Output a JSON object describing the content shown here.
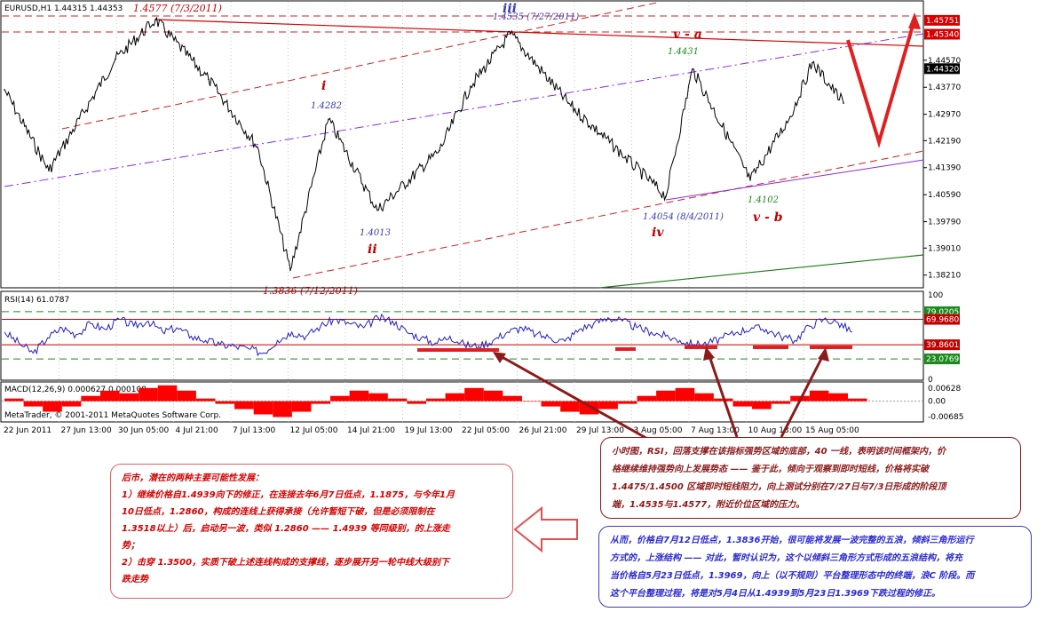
{
  "chart_data": [
    {
      "type": "line",
      "panel": "price",
      "header": "EURUSD,H1  1.44315 1.44353",
      "symbol": "EURUSD,H1",
      "ylim": [
        1.3786,
        1.463
      ],
      "y_ticks": [
        "1.44570",
        "1.43770",
        "1.42970",
        "1.42190",
        "1.41390",
        "1.40590",
        "1.39790",
        "1.39010",
        "1.38210"
      ],
      "price_tags": [
        {
          "label": "1.45751",
          "value": 1.45751,
          "color": "#d40000"
        },
        {
          "label": "1.45340",
          "value": 1.4534,
          "color": "#d40000"
        },
        {
          "label": "1.44320",
          "value": 1.4432,
          "color": "#000000"
        }
      ],
      "x_labels": [
        "22 Jun 2011",
        "27 Jun 13:00",
        "30 Jun 05:00",
        "4 Jul 21:00",
        "7 Jul 13:00",
        "12 Jul 05:00",
        "14 Jul 21:00",
        "19 Jul 13:00",
        "22 Jul 05:00",
        "26 Jul 21:00",
        "29 Jul 13:00",
        "3 Aug 05:00",
        "7 Aug 13:00",
        "10 Aug 13:00",
        "15 Aug 05:00"
      ],
      "swing_points": [
        {
          "date": "22 Jun",
          "value": 1.437
        },
        {
          "date": "24 Jun",
          "value": 1.413
        },
        {
          "date": "29 Jun",
          "value": 1.446
        },
        {
          "date": "3 Jul",
          "value": 1.4577
        },
        {
          "date": "5 Jul",
          "value": 1.44
        },
        {
          "date": "8 Jul",
          "value": 1.42
        },
        {
          "date": "12 Jul",
          "value": 1.3836
        },
        {
          "date": "13 Jul",
          "value": 1.4282
        },
        {
          "date": "15 Jul",
          "value": 1.4013
        },
        {
          "date": "19 Jul",
          "value": 1.419
        },
        {
          "date": "22 Jul",
          "value": 1.438
        },
        {
          "date": "27 Jul",
          "value": 1.4535
        },
        {
          "date": "29 Jul",
          "value": 1.433
        },
        {
          "date": "2 Aug",
          "value": 1.418
        },
        {
          "date": "4 Aug",
          "value": 1.4054
        },
        {
          "date": "8 Aug",
          "value": 1.4431
        },
        {
          "date": "10 Aug",
          "value": 1.4102
        },
        {
          "date": "13 Aug",
          "value": 1.429
        },
        {
          "date": "15 Aug",
          "value": 1.445
        },
        {
          "date": "17 Aug",
          "value": 1.433
        }
      ],
      "annotations": [
        {
          "text": "1.4577 (7/3/2011)",
          "style": "red"
        },
        {
          "text": "1.4535 (7/27/2011)",
          "style": "blue"
        },
        {
          "text": "1.4431",
          "style": "green"
        },
        {
          "text": "1.4282",
          "style": "blue"
        },
        {
          "text": "1.4013",
          "style": "blue"
        },
        {
          "text": "1.3836 (7/12/2011)",
          "style": "red"
        },
        {
          "text": "1.4054 (8/4/2011)",
          "style": "blue"
        },
        {
          "text": "1.4102",
          "style": "green"
        },
        {
          "text": "i",
          "style": "wave-red"
        },
        {
          "text": "ii",
          "style": "wave-red"
        },
        {
          "text": "iii",
          "style": "wave-blue"
        },
        {
          "text": "iv",
          "style": "wave-red"
        },
        {
          "text": "v - a",
          "style": "wave-red"
        },
        {
          "text": "v - b",
          "style": "wave-red"
        }
      ]
    },
    {
      "type": "line",
      "panel": "rsi",
      "header": "RSI(14) 61.0787",
      "ylim": [
        0,
        100
      ],
      "y_ticks": [
        "100",
        "0"
      ],
      "levels": [
        {
          "label": "79.0205",
          "value": 79.02,
          "color": "#1a8a1a"
        },
        {
          "label": "69.9680",
          "value": 69.97,
          "color": "#c00000"
        },
        {
          "label": "39.8601",
          "value": 39.86,
          "color": "#c00000"
        },
        {
          "label": "23.0769",
          "value": 23.08,
          "color": "#1a8a1a"
        }
      ],
      "values": [
        55,
        42,
        30,
        48,
        60,
        52,
        65,
        58,
        70,
        62,
        68,
        55,
        60,
        50,
        45,
        40,
        38,
        35,
        30,
        45,
        55,
        50,
        62,
        70,
        65,
        60,
        72,
        68,
        55,
        48,
        42,
        50,
        40,
        38,
        45,
        55,
        60,
        52,
        48,
        44,
        58,
        65,
        72,
        68,
        60,
        55,
        50,
        45,
        40,
        42,
        48,
        55,
        60,
        58,
        50,
        45,
        62,
        70,
        66,
        55
      ]
    },
    {
      "type": "bar",
      "panel": "macd",
      "header": "MACD(12,26,9) 0.000627 0.000108",
      "y_ticks": [
        "0.00628",
        "0.00",
        "-0.00685"
      ],
      "ylim": [
        -0.00685,
        0.00628
      ],
      "values": [
        0.001,
        -0.002,
        -0.004,
        -0.002,
        0.002,
        0.004,
        0.003,
        0.005,
        0.006,
        0.004,
        0.001,
        -0.001,
        -0.003,
        -0.005,
        -0.006,
        -0.004,
        -0.001,
        0.002,
        0.004,
        0.003,
        0.001,
        -0.001,
        0.001,
        0.003,
        0.005,
        0.004,
        0.002,
        0.0,
        -0.002,
        -0.004,
        -0.005,
        -0.003,
        -0.001,
        0.002,
        0.004,
        0.005,
        0.003,
        0.001,
        -0.002,
        -0.003,
        -0.001,
        0.002,
        0.004,
        0.003,
        0.001
      ]
    }
  ],
  "footer": "MetaTrader, © 2001-2011 MetaQuotes Software Corp.",
  "notes": {
    "left": [
      "后市，潜在的两种主要可能性发展：",
      "1）继续价格自1.4939向下的修正，在连接去年6月7日低点，1.1875，与今年1月",
      "10日低点，1.2860，构成的连线上获得承接（允许暂短下破，但是必须限制在",
      "1.3518以上）后，启动另一波，类似 1.2860 —— 1.4939 等同级别，的上涨走",
      "势；",
      "2）击穿 1.3500，实质下破上述连线构成的支撑线，逐步展开另一轮中线大级别下",
      "跌走势"
    ],
    "middle": [
      "小时图，RSI，回落支撑在该指标强势区域的底部，40 一线，表明该时间框架内，价",
      "格继续维持强势向上发展势态 —— 鉴于此，倾向于观察到即时短线，价格将实破",
      "1.4475/1.4500 区域即时短线阻力，向上测试分别在7/27日与7/3日形成的阶段顶",
      "端，1.4535与1.4577，附近价位区域的压力。"
    ],
    "right": [
      "从而，价格自7月12日低点，1.3836开始，很可能将发展一波完整的五浪，倾斜三角形运行",
      "方式的，上涨结构 —— 对此，暂时认识为，这个以倾斜三角形方式形成的五浪结构，将充",
      "当价格自5月23日低点，1.3969，向上（以不规则）平台整理形态中的终端，浪C 阶段。而",
      "这个平台整理过程，将是对5月4日从1.4939到5月23日1.3969下跌过程的修正。"
    ]
  },
  "colors": {
    "red_line": "#d40000",
    "dashed_red": "#cc2020",
    "purple": "#8a2be2",
    "green": "#1a7a1a",
    "price": "#000000",
    "rsi_line": "#2020c0",
    "macd_bar": "#ff0000",
    "grid": "#c8c8c8",
    "arrow_dark": "#8b1a1a",
    "arrow_left": "#e05050"
  }
}
